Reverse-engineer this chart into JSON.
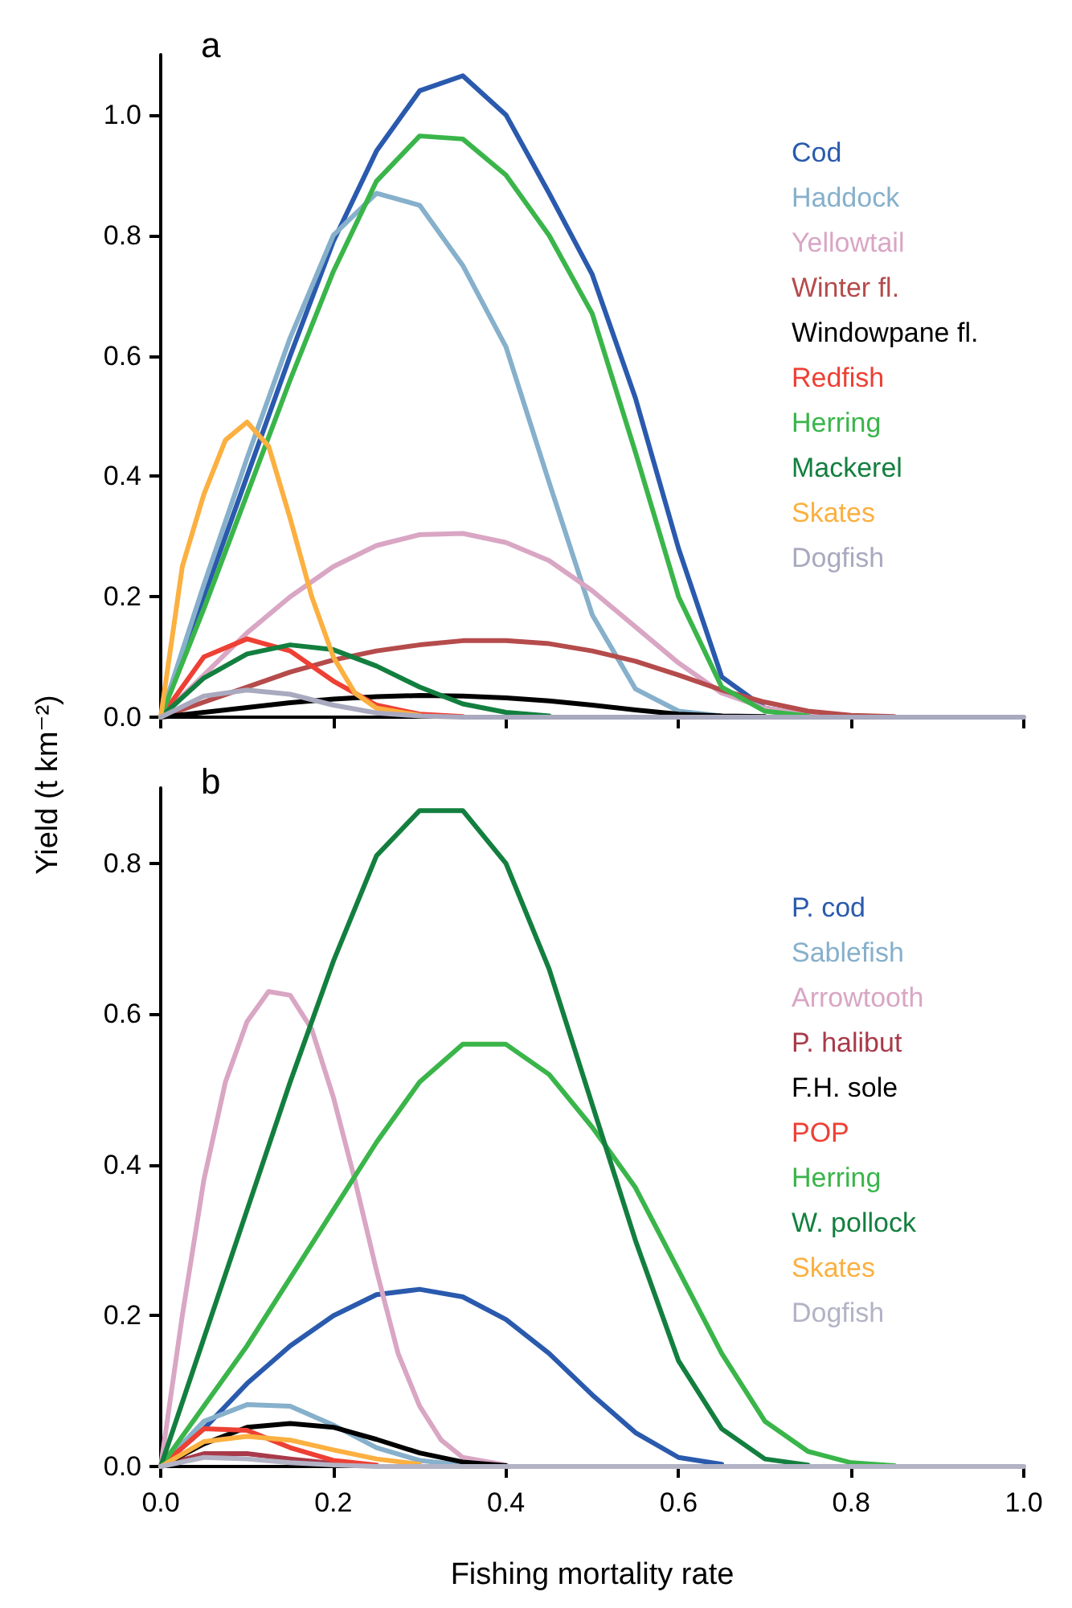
{
  "chart_data": [
    {
      "type": "line",
      "title": "a",
      "ylabel": "Yield (t km⁻²)",
      "x": [
        0,
        0.05,
        0.1,
        0.15,
        0.2,
        0.25,
        0.3,
        0.35,
        0.4,
        0.45,
        0.5,
        0.55,
        0.6,
        0.65,
        0.7,
        0.75,
        0.8,
        0.85,
        0.9,
        0.95,
        1.0
      ],
      "xlim": [
        0,
        1
      ],
      "xticks": [
        {
          "value": 0,
          "label": null
        },
        {
          "value": 0.2,
          "label": null
        },
        {
          "value": 0.4,
          "label": null
        },
        {
          "value": 0.6,
          "label": null
        },
        {
          "value": 0.8,
          "label": null
        },
        {
          "value": 1.0,
          "label": null
        }
      ],
      "ylim": [
        0,
        1.1
      ],
      "yticks": [
        {
          "value": 0,
          "label": "0.0"
        },
        {
          "value": 0.2,
          "label": "0.2"
        },
        {
          "value": 0.4,
          "label": "0.4"
        },
        {
          "value": 0.6,
          "label": "0.6"
        },
        {
          "value": 0.8,
          "label": "0.8"
        },
        {
          "value": 1.0,
          "label": "1.0"
        }
      ],
      "tick_labels": "y",
      "grid": false,
      "legend": "right",
      "marker": "none",
      "line_style": "solid",
      "series": [
        {
          "name": "Cod",
          "color": "#2a5aad",
          "values": [
            0,
            0.2,
            0.4,
            0.6,
            0.79,
            0.94,
            1.04,
            1.065,
            1.0,
            0.87,
            0.735,
            0.53,
            0.28,
            0.067,
            0.015,
            0.003,
            null,
            null,
            null,
            null,
            null
          ]
        },
        {
          "name": "Haddock",
          "color": "#86b0cb",
          "values": [
            0,
            0.22,
            0.43,
            0.63,
            0.8,
            0.87,
            0.85,
            0.75,
            0.615,
            0.39,
            0.17,
            0.047,
            0.01,
            0.002,
            null,
            null,
            null,
            null,
            null,
            null,
            null
          ]
        },
        {
          "name": "Yellowtail",
          "color": "#d9a6c4",
          "values": [
            0,
            0.07,
            0.14,
            0.2,
            0.25,
            0.285,
            0.303,
            0.305,
            0.29,
            0.26,
            0.21,
            0.15,
            0.09,
            0.04,
            0.015,
            0.004,
            0.001,
            null,
            null,
            null,
            null
          ]
        },
        {
          "name": "Winter fl.",
          "color": "#b54b4b",
          "values": [
            0,
            0.025,
            0.05,
            0.075,
            0.095,
            0.11,
            0.12,
            0.127,
            0.127,
            0.122,
            0.11,
            0.093,
            0.07,
            0.045,
            0.025,
            0.01,
            0.003,
            0.001,
            null,
            null,
            null
          ]
        },
        {
          "name": "Windowpane fl.",
          "color": "#000000",
          "values": [
            0,
            0.008,
            0.016,
            0.024,
            0.03,
            0.034,
            0.036,
            0.035,
            0.032,
            0.027,
            0.02,
            0.012,
            0.005,
            0.002,
            0.001,
            null,
            null,
            null,
            null,
            null,
            null
          ]
        },
        {
          "name": "Redfish",
          "color": "#ee4034",
          "values": [
            0,
            0.1,
            0.13,
            0.11,
            0.06,
            0.02,
            0.005,
            0.001,
            null,
            null,
            null,
            null,
            null,
            null,
            null,
            null,
            null,
            null,
            null,
            null,
            null
          ]
        },
        {
          "name": "Herring",
          "color": "#3ab54a",
          "values": [
            0,
            0.18,
            0.37,
            0.56,
            0.74,
            0.89,
            0.965,
            0.96,
            0.9,
            0.8,
            0.67,
            0.44,
            0.2,
            0.05,
            0.01,
            0.002,
            null,
            null,
            null,
            null,
            null
          ]
        },
        {
          "name": "Mackerel",
          "color": "#137f3f",
          "values": [
            0,
            0.065,
            0.105,
            0.12,
            0.112,
            0.085,
            0.05,
            0.022,
            0.008,
            0.002,
            null,
            null,
            null,
            null,
            null,
            null,
            null,
            null,
            null,
            null,
            null
          ]
        },
        {
          "name": "Skates",
          "color": "#fbb040",
          "x": [
            0,
            0.025,
            0.05,
            0.075,
            0.1,
            0.125,
            0.15,
            0.175,
            0.2,
            0.225,
            0.25,
            0.3
          ],
          "values": [
            0,
            0.25,
            0.37,
            0.46,
            0.49,
            0.45,
            0.33,
            0.2,
            0.1,
            0.04,
            0.015,
            0.003
          ]
        },
        {
          "name": "Dogfish",
          "color": "#a9a9bf",
          "values": [
            0,
            0.035,
            0.045,
            0.038,
            0.02,
            0.007,
            0.002,
            0,
            0,
            0,
            0,
            0,
            0,
            0,
            0,
            0,
            0,
            0,
            0,
            0,
            0
          ]
        }
      ]
    },
    {
      "type": "line",
      "title": "b",
      "xlabel": "Fishing mortality rate",
      "x": [
        0,
        0.05,
        0.1,
        0.15,
        0.2,
        0.25,
        0.3,
        0.35,
        0.4,
        0.45,
        0.5,
        0.55,
        0.6,
        0.65,
        0.7,
        0.75,
        0.8,
        0.85,
        0.9,
        0.95,
        1.0
      ],
      "xlim": [
        0,
        1
      ],
      "xticks": [
        {
          "value": 0,
          "label": "0.0"
        },
        {
          "value": 0.2,
          "label": "0.2"
        },
        {
          "value": 0.4,
          "label": "0.4"
        },
        {
          "value": 0.6,
          "label": "0.6"
        },
        {
          "value": 0.8,
          "label": "0.8"
        },
        {
          "value": 1.0,
          "label": "1.0"
        }
      ],
      "ylim": [
        0,
        0.9
      ],
      "yticks": [
        {
          "value": 0,
          "label": "0.0"
        },
        {
          "value": 0.2,
          "label": "0.2"
        },
        {
          "value": 0.4,
          "label": "0.4"
        },
        {
          "value": 0.6,
          "label": "0.6"
        },
        {
          "value": 0.8,
          "label": "0.8"
        }
      ],
      "grid": false,
      "legend": "right",
      "marker": "none",
      "line_style": "solid",
      "series": [
        {
          "name": "P. cod",
          "color": "#2a5aad",
          "values": [
            0,
            0.05,
            0.11,
            0.16,
            0.2,
            0.228,
            0.235,
            0.225,
            0.195,
            0.15,
            0.095,
            0.045,
            0.012,
            0.003,
            null,
            null,
            null,
            null,
            null,
            null,
            null
          ]
        },
        {
          "name": "Sablefish",
          "color": "#86b0cb",
          "values": [
            0,
            0.06,
            0.082,
            0.08,
            0.055,
            0.025,
            0.008,
            0.002,
            null,
            null,
            null,
            null,
            null,
            null,
            null,
            null,
            null,
            null,
            null,
            null,
            null
          ]
        },
        {
          "name": "Arrowtooth",
          "color": "#d9a6c4",
          "x": [
            0,
            0.025,
            0.05,
            0.075,
            0.1,
            0.125,
            0.15,
            0.175,
            0.2,
            0.225,
            0.25,
            0.275,
            0.3,
            0.325,
            0.35,
            0.4
          ],
          "values": [
            0,
            0.2,
            0.38,
            0.51,
            0.59,
            0.63,
            0.625,
            0.58,
            0.49,
            0.38,
            0.26,
            0.15,
            0.08,
            0.035,
            0.012,
            0.002
          ]
        },
        {
          "name": "P. halibut",
          "color": "#a83a4a",
          "values": [
            0,
            0.017,
            0.017,
            0.01,
            0.004,
            0.001,
            null,
            null,
            null,
            null,
            null,
            null,
            null,
            null,
            null,
            null,
            null,
            null,
            null,
            null,
            null
          ]
        },
        {
          "name": "F.H. sole",
          "color": "#000000",
          "values": [
            0,
            0.03,
            0.052,
            0.057,
            0.052,
            0.036,
            0.018,
            0.006,
            0.001,
            null,
            null,
            null,
            null,
            null,
            null,
            null,
            null,
            null,
            null,
            null,
            null
          ]
        },
        {
          "name": "POP",
          "color": "#ee4034",
          "values": [
            0,
            0.05,
            0.048,
            0.025,
            0.008,
            0.002,
            null,
            null,
            null,
            null,
            null,
            null,
            null,
            null,
            null,
            null,
            null,
            null,
            null,
            null,
            null
          ]
        },
        {
          "name": "Herring",
          "color": "#3ab54a",
          "values": [
            0,
            0.08,
            0.16,
            0.25,
            0.34,
            0.43,
            0.51,
            0.56,
            0.56,
            0.52,
            0.45,
            0.37,
            0.26,
            0.15,
            0.06,
            0.02,
            0.005,
            0.001,
            null,
            null,
            null
          ]
        },
        {
          "name": "W. pollock",
          "color": "#137f3f",
          "values": [
            0,
            0.17,
            0.34,
            0.51,
            0.67,
            0.81,
            0.87,
            0.87,
            0.8,
            0.66,
            0.48,
            0.3,
            0.14,
            0.05,
            0.01,
            0.002,
            null,
            null,
            null,
            null,
            null
          ]
        },
        {
          "name": "Skates",
          "color": "#fbb040",
          "values": [
            0,
            0.033,
            0.04,
            0.035,
            0.022,
            0.01,
            0.003,
            null,
            null,
            null,
            null,
            null,
            null,
            null,
            null,
            null,
            null,
            null,
            null,
            null,
            null
          ]
        },
        {
          "name": "Dogfish",
          "color": "#b3b3c6",
          "values": [
            0,
            0.012,
            0.01,
            0.005,
            0.002,
            0,
            0,
            0,
            0,
            0,
            0,
            0,
            0,
            0,
            0,
            0,
            0,
            0,
            0,
            0,
            0
          ]
        }
      ]
    }
  ]
}
